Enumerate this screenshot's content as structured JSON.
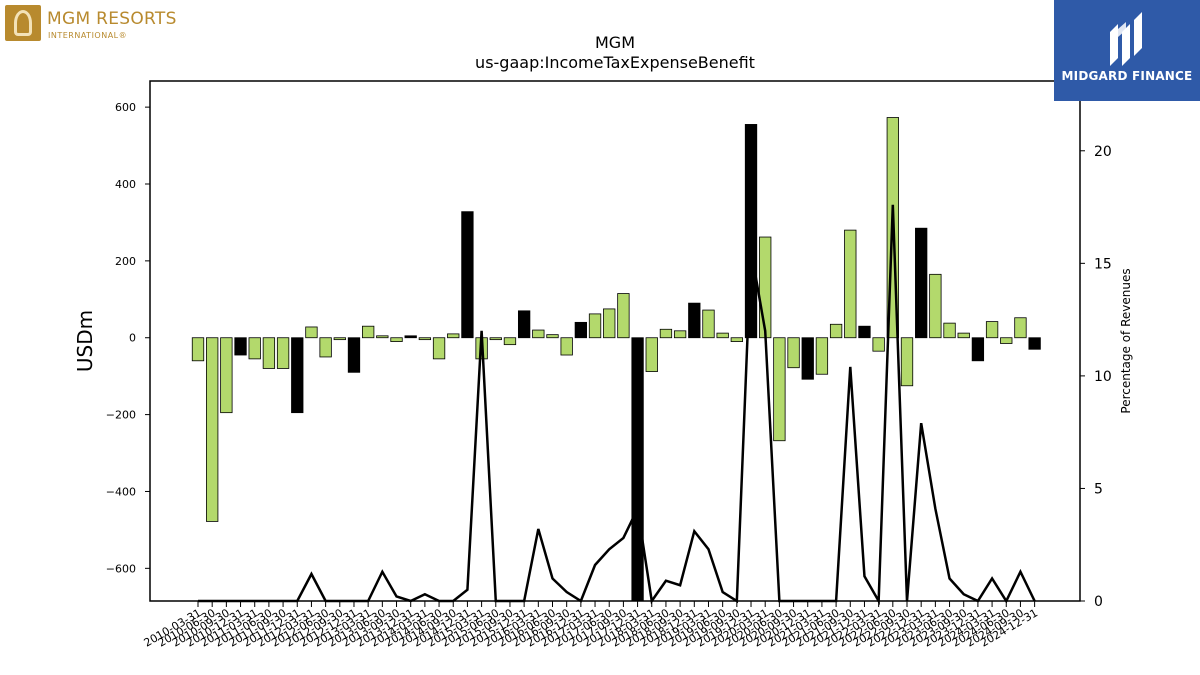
{
  "logos": {
    "left": {
      "name": "MGM RESORTS",
      "sub": "INTERNATIONAL®"
    },
    "right": {
      "name": "MIDGARD FINANCE"
    }
  },
  "chart_data": {
    "type": "bar",
    "title": "MGM",
    "subtitle": "us-gaap:IncomeTaxExpenseBenefit",
    "ylabel": "USDm",
    "y2label": "Percentage of Revenues",
    "ylim": [
      -685,
      668
    ],
    "y2lim": [
      0,
      23.1
    ],
    "yticks": [
      -600,
      -400,
      -200,
      0,
      200,
      400,
      600
    ],
    "y2ticks": [
      0,
      5,
      10,
      15,
      20
    ],
    "grid": false,
    "colors": {
      "positive_quarter": "#b3d96c",
      "annual": "#000000",
      "line": "#000000"
    },
    "x_labels": [
      "2010-03-31",
      "2010-06-30",
      "2010-09-30",
      "2010-12-31",
      "2011-03-31",
      "2011-06-30",
      "2011-09-30",
      "2011-12-31",
      "2012-03-31",
      "2012-06-30",
      "2012-09-30",
      "2012-12-31",
      "2013-03-31",
      "2013-06-30",
      "2013-09-30",
      "2013-12-31",
      "2014-03-31",
      "2014-06-30",
      "2014-09-30",
      "2014-12-31",
      "2015-03-31",
      "2015-06-30",
      "2015-09-30",
      "2015-12-31",
      "2016-03-31",
      "2016-06-30",
      "2016-09-30",
      "2016-12-31",
      "2017-03-31",
      "2017-06-30",
      "2017-09-30",
      "2017-12-31",
      "2018-03-31",
      "2018-06-30",
      "2018-09-30",
      "2018-12-31",
      "2019-03-31",
      "2019-06-30",
      "2019-09-30",
      "2019-12-31",
      "2020-03-31",
      "2020-06-30",
      "2020-09-30",
      "2020-12-31",
      "2021-03-31",
      "2021-06-30",
      "2021-09-30",
      "2021-12-31",
      "2022-03-31",
      "2022-06-30",
      "2022-09-30",
      "2022-12-31",
      "2023-03-31",
      "2023-06-30",
      "2023-09-30",
      "2023-12-31",
      "2024-03-31",
      "2024-06-30",
      "2024-09-30",
      "2024-12-31"
    ],
    "series": [
      {
        "values": [
          -60,
          -478,
          -195,
          -45,
          -55,
          -80,
          -80,
          -195,
          28,
          -50,
          -5,
          -90,
          30,
          5,
          -10,
          5,
          -5,
          -55,
          10,
          328,
          -55,
          -5,
          -18,
          70,
          20,
          8,
          -45,
          40,
          62,
          75,
          115,
          -685,
          -88,
          22,
          18,
          90,
          72,
          12,
          -10,
          555,
          262,
          -268,
          -78,
          -108,
          -95,
          35,
          280,
          30,
          -35,
          573,
          -125,
          285,
          165,
          38,
          12,
          -60,
          42,
          -15,
          52,
          -30
        ]
      },
      {
        "name": "Percentage of Revenues",
        "values": [
          0,
          0,
          0,
          0,
          0,
          0,
          0,
          0,
          1.2,
          0,
          0,
          0,
          0,
          1.3,
          0.2,
          0,
          0.3,
          0,
          0,
          0.5,
          12.0,
          0,
          0,
          0,
          3.2,
          1.0,
          0.4,
          0,
          1.6,
          2.3,
          2.8,
          4.1,
          0,
          0.9,
          0.7,
          3.1,
          2.3,
          0.4,
          0,
          15.6,
          12.0,
          0,
          0,
          0,
          0,
          0,
          10.4,
          1.1,
          0,
          17.6,
          0,
          7.9,
          4.1,
          1.0,
          0.3,
          0,
          1.0,
          0,
          1.3,
          0
        ]
      }
    ]
  }
}
